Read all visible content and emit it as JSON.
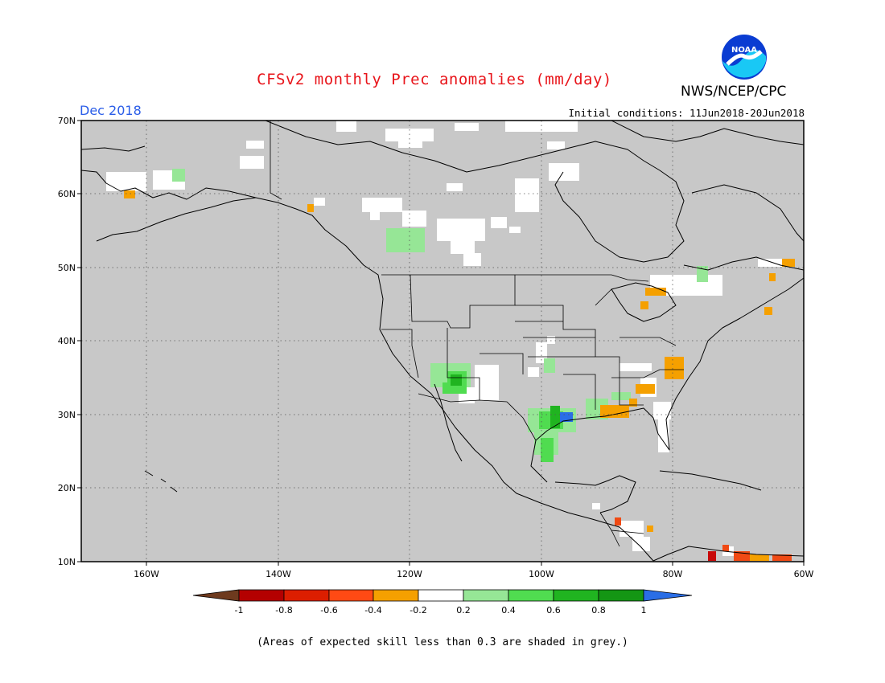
{
  "header": {
    "title": "CFSv2 monthly Prec anomalies (mm/day)",
    "org": "NWS/NCEP/CPC",
    "logo_text": "NOAA",
    "valid_month": "Dec 2018",
    "initial_conditions": "Initial conditions: 11Jun2018-20Jun2018"
  },
  "map": {
    "lon_range": [
      -170,
      -60
    ],
    "lat_range": [
      10,
      70
    ],
    "lon_ticks": [
      "160W",
      "140W",
      "120W",
      "100W",
      "80W",
      "60W"
    ],
    "lat_ticks": [
      "70N",
      "60N",
      "50N",
      "40N",
      "30N",
      "20N",
      "10N"
    ],
    "grid": true,
    "masked_color": "#c8c8c8",
    "anomaly_patches": [
      {
        "label": "-0.4 to -0.2",
        "color": "#f5a000",
        "locations": [
          "SW Alaska",
          "SE Alaska",
          "Lake Michigan",
          "Lake Superior",
          "North Carolina",
          "Georgia",
          "Florida Panhandle",
          "Nova Scotia",
          "Newfoundland"
        ]
      },
      {
        "label": "-0.6 to -0.4",
        "color": "#f04a14",
        "locations": [
          "Venezuela coast"
        ]
      },
      {
        "label": "-0.8 to -0.6",
        "color": "#c80a0a",
        "locations": [
          "Venezuela coast",
          "Honduras"
        ]
      },
      {
        "label": "0.2 to 0.4",
        "color": "#96e696",
        "locations": [
          "Bering Sea",
          "British Columbia",
          "Arizona",
          "Kansas",
          "Texas",
          "Louisiana",
          "Georgia",
          "Quebec"
        ]
      },
      {
        "label": "0.4 to 0.6",
        "color": "#50dc50",
        "locations": [
          "Arizona",
          "Texas"
        ]
      },
      {
        "label": "0.6 to 0.8",
        "color": "#20b420",
        "locations": [
          "Arizona",
          "Texas"
        ]
      },
      {
        "label": "> 1",
        "color": "#2a6ee6",
        "locations": [
          "East Texas"
        ]
      }
    ]
  },
  "colorbar": {
    "labels": [
      "-1",
      "-0.8",
      "-0.6",
      "-0.4",
      "-0.2",
      "0.2",
      "0.4",
      "0.6",
      "0.8",
      "1"
    ],
    "colors": [
      "#6e3a1e",
      "#b40000",
      "#dc1e00",
      "#ff4a14",
      "#f5a000",
      "#ffffff",
      "#96e696",
      "#50dc50",
      "#20b420",
      "#149614",
      "#2a6ee6"
    ]
  },
  "footnote": "(Areas of expected skill less than 0.3 are shaded in grey.)"
}
